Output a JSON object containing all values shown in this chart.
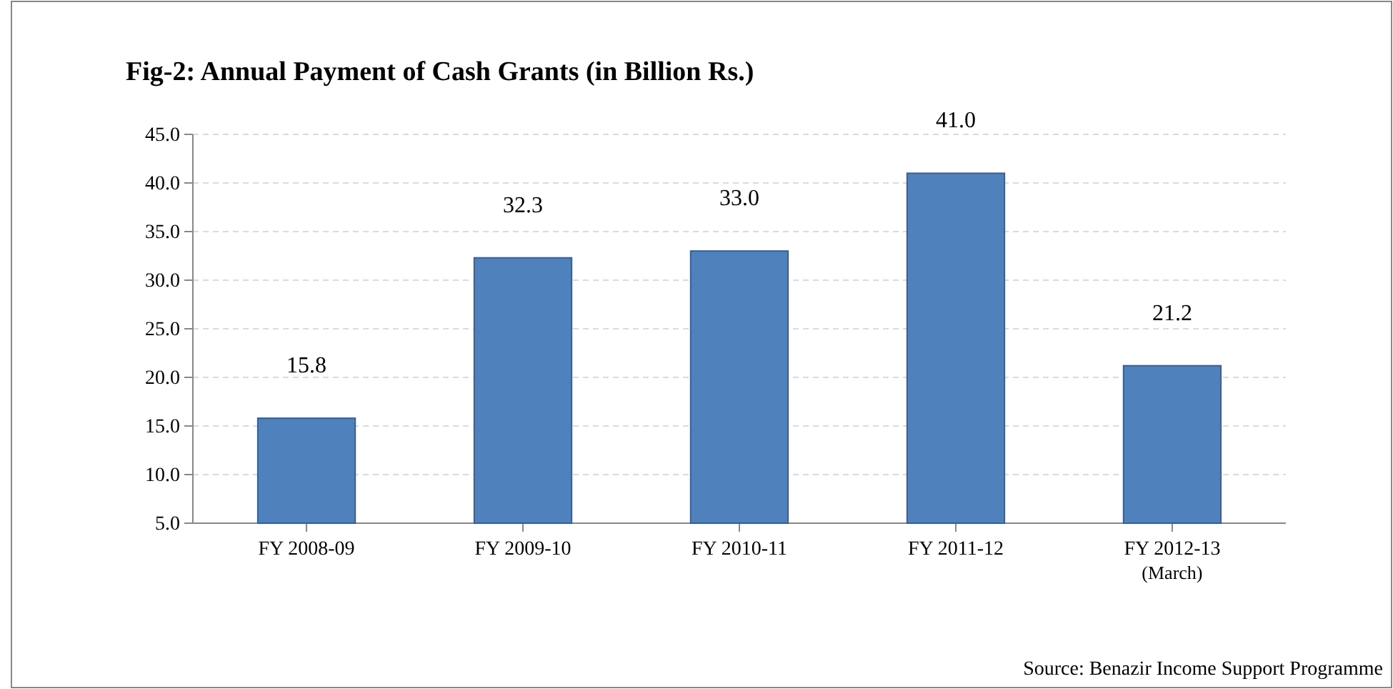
{
  "chart_data": {
    "type": "bar",
    "title": "Fig-2: Annual Payment of Cash Grants (in Billion Rs.)",
    "categories": [
      "FY 2008-09",
      "FY 2009-10",
      "FY 2010-11",
      "FY 2011-12",
      "FY 2012-13\n(March)"
    ],
    "values": [
      15.8,
      32.3,
      33.0,
      41.0,
      21.2
    ],
    "value_labels": [
      "15.8",
      "32.3",
      "33.0",
      "41.0",
      "21.2"
    ],
    "color": "#4f81bd",
    "ylim": [
      5,
      45
    ],
    "yticks": [
      {
        "value": 5,
        "label": "5.0"
      },
      {
        "value": 10,
        "label": "10.0"
      },
      {
        "value": 15,
        "label": "15.0"
      },
      {
        "value": 20,
        "label": "20.0"
      },
      {
        "value": 25,
        "label": "25.0"
      },
      {
        "value": 30,
        "label": "30.0"
      },
      {
        "value": 35,
        "label": "35.0"
      },
      {
        "value": 40,
        "label": "40.0"
      },
      {
        "value": 45,
        "label": "45.0"
      }
    ],
    "grid": "y",
    "annotations": [
      "Source: Benazir Income Support Programme"
    ]
  }
}
